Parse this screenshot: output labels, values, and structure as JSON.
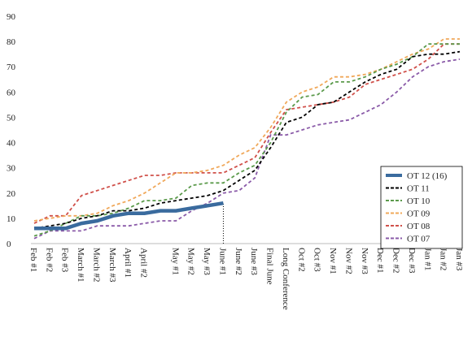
{
  "chart_data": {
    "type": "line",
    "categories": [
      "Feb #1",
      "Feb #2",
      "Feb #3",
      "March #1",
      "March #2",
      "March #3",
      "April #1",
      "April #2",
      null,
      "May #1",
      "May #2",
      "May #3",
      "June #1",
      "June #2",
      "June #3",
      "Final June",
      "Long Conference",
      "Oct #2",
      "Oct #3",
      "Nov #1",
      "Nov #2",
      "Nov #3",
      "Dec #1",
      "Dec #2",
      "Dec #3",
      "Jan #1",
      "Jan #2",
      "Jan #3"
    ],
    "series": [
      {
        "name": "OT 12 (16)",
        "color": "#3a6b9e",
        "dash": "solid",
        "values": [
          6,
          6,
          6,
          8,
          9,
          11,
          12,
          12,
          13,
          13,
          14,
          15,
          16,
          null,
          null,
          null,
          null,
          null,
          null,
          null,
          null,
          null,
          null,
          null,
          null,
          null,
          null,
          null
        ]
      },
      {
        "name": "OT 11",
        "color": "#000000",
        "dash": "dashed",
        "values": [
          6,
          7,
          8,
          10,
          11,
          13,
          13,
          14,
          16,
          17,
          18,
          19,
          21,
          25,
          29,
          38,
          48,
          50,
          55,
          56,
          60,
          64,
          67,
          69,
          74,
          75,
          75,
          76
        ]
      },
      {
        "name": "OT 10",
        "color": "#5b9a4b",
        "dash": "dashed",
        "values": [
          3,
          5,
          8,
          11,
          11,
          12,
          14,
          17,
          17,
          18,
          23,
          24,
          24,
          28,
          31,
          40,
          52,
          58,
          59,
          64,
          64,
          66,
          69,
          71,
          74,
          79,
          79,
          79
        ]
      },
      {
        "name": "OT 09",
        "color": "#f0a85a",
        "dash": "dashed",
        "values": [
          9,
          10,
          11,
          11,
          12,
          15,
          17,
          20,
          24,
          28,
          28,
          29,
          31,
          35,
          38,
          46,
          56,
          60,
          62,
          66,
          66,
          67,
          69,
          72,
          75,
          77,
          81,
          81
        ]
      },
      {
        "name": "OT 08",
        "color": "#d0504a",
        "dash": "dashed",
        "values": [
          8,
          11,
          11,
          19,
          21,
          23,
          25,
          27,
          27,
          28,
          28,
          28,
          28,
          31,
          34,
          44,
          53,
          54,
          55,
          56,
          58,
          63,
          65,
          67,
          69,
          73,
          79,
          79
        ]
      },
      {
        "name": "OT 07",
        "color": "#8a5aa8",
        "dash": "dashed",
        "values": [
          2,
          5,
          5,
          5,
          7,
          7,
          7,
          8,
          9,
          9,
          13,
          16,
          20,
          21,
          26,
          43,
          43,
          45,
          47,
          48,
          49,
          52,
          55,
          60,
          66,
          70,
          72,
          73
        ]
      }
    ],
    "ylim": [
      0,
      90
    ],
    "yticks": [
      0,
      10,
      20,
      30,
      40,
      50,
      60,
      70,
      80,
      90
    ],
    "grid": false,
    "legend": "lower right"
  }
}
